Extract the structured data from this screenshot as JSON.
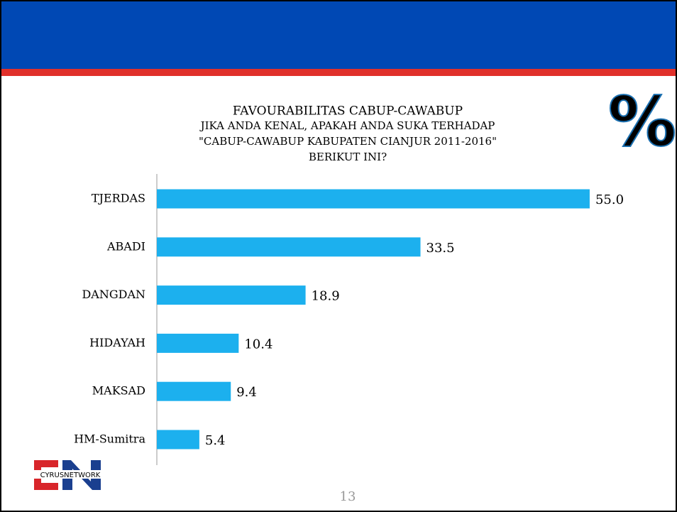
{
  "slide": {
    "page_number": "13",
    "logo_text": "CYRUSNETWORK",
    "icon": "%"
  },
  "chart_data": {
    "type": "bar",
    "orientation": "horizontal",
    "title": "FAVOURABILITAS CABUP-CAWABUP",
    "subtitle": [
      "JIKA ANDA KENAL, APAKAH ANDA SUKA TERHADAP",
      "\"CABUP-CAWABUP KABUPATEN CIANJUR 2011-2016\"",
      "BERIKUT INI?"
    ],
    "categories": [
      "TJERDAS",
      "ABADI",
      "DANGDAN",
      "HIDAYAH",
      "MAKSAD",
      "HM-Sumitra"
    ],
    "values": [
      55.0,
      33.5,
      18.9,
      10.4,
      9.4,
      5.4
    ],
    "value_labels": [
      "55.0",
      "33.5",
      "18.9",
      "10.4",
      "9.4",
      "5.4"
    ],
    "color": "#1cb0ee"
  }
}
